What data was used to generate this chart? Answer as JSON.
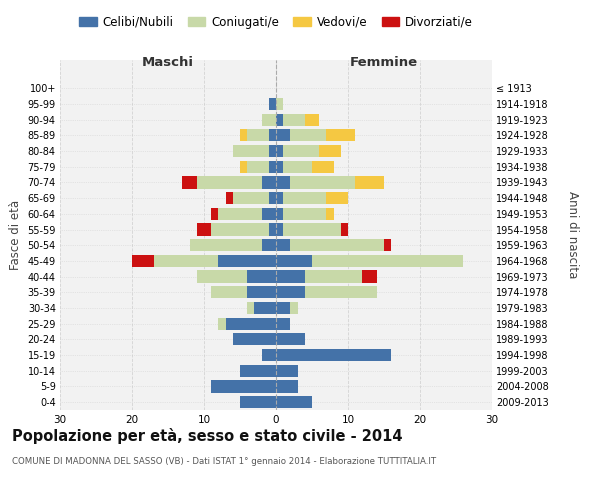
{
  "age_groups": [
    "0-4",
    "5-9",
    "10-14",
    "15-19",
    "20-24",
    "25-29",
    "30-34",
    "35-39",
    "40-44",
    "45-49",
    "50-54",
    "55-59",
    "60-64",
    "65-69",
    "70-74",
    "75-79",
    "80-84",
    "85-89",
    "90-94",
    "95-99",
    "100+"
  ],
  "birth_years": [
    "2009-2013",
    "2004-2008",
    "1999-2003",
    "1994-1998",
    "1989-1993",
    "1984-1988",
    "1979-1983",
    "1974-1978",
    "1969-1973",
    "1964-1968",
    "1959-1963",
    "1954-1958",
    "1949-1953",
    "1944-1948",
    "1939-1943",
    "1934-1938",
    "1929-1933",
    "1924-1928",
    "1919-1923",
    "1914-1918",
    "≤ 1913"
  ],
  "colors": {
    "celibi": "#4472a8",
    "coniugati": "#c8d9a8",
    "vedovi": "#f5c842",
    "divorziati": "#cc1111"
  },
  "maschi": {
    "celibi": [
      5,
      9,
      5,
      2,
      6,
      7,
      3,
      4,
      4,
      8,
      2,
      1,
      2,
      1,
      2,
      1,
      1,
      1,
      0,
      1,
      0
    ],
    "coniugati": [
      0,
      0,
      0,
      0,
      0,
      1,
      1,
      5,
      7,
      9,
      10,
      8,
      6,
      5,
      9,
      3,
      5,
      3,
      2,
      0,
      0
    ],
    "vedovi": [
      0,
      0,
      0,
      0,
      0,
      0,
      0,
      0,
      0,
      0,
      0,
      0,
      0,
      0,
      0,
      1,
      0,
      1,
      0,
      0,
      0
    ],
    "divorziati": [
      0,
      0,
      0,
      0,
      0,
      0,
      0,
      0,
      0,
      3,
      0,
      2,
      1,
      1,
      2,
      0,
      0,
      0,
      0,
      0,
      0
    ]
  },
  "femmine": {
    "celibi": [
      5,
      3,
      3,
      16,
      4,
      2,
      2,
      4,
      4,
      5,
      2,
      1,
      1,
      1,
      2,
      1,
      1,
      2,
      1,
      0,
      0
    ],
    "coniugati": [
      0,
      0,
      0,
      0,
      0,
      0,
      1,
      10,
      8,
      21,
      13,
      8,
      6,
      6,
      9,
      4,
      5,
      5,
      3,
      1,
      0
    ],
    "vedovi": [
      0,
      0,
      0,
      0,
      0,
      0,
      0,
      0,
      0,
      0,
      0,
      0,
      1,
      3,
      4,
      3,
      3,
      4,
      2,
      0,
      0
    ],
    "divorziati": [
      0,
      0,
      0,
      0,
      0,
      0,
      0,
      0,
      2,
      0,
      1,
      1,
      0,
      0,
      0,
      0,
      0,
      0,
      0,
      0,
      0
    ]
  },
  "title": "Popolazione per età, sesso e stato civile - 2014",
  "subtitle": "COMUNE DI MADONNA DEL SASSO (VB) - Dati ISTAT 1° gennaio 2014 - Elaborazione TUTTITALIA.IT",
  "xlabel_left": "Maschi",
  "xlabel_right": "Femmine",
  "ylabel_left": "Fasce di età",
  "ylabel_right": "Anni di nascita",
  "xlim": 30,
  "bg_color": "#ffffff",
  "grid_color": "#cccccc",
  "legend_labels": [
    "Celibi/Nubili",
    "Coniugati/e",
    "Vedovi/e",
    "Divorziati/e"
  ]
}
